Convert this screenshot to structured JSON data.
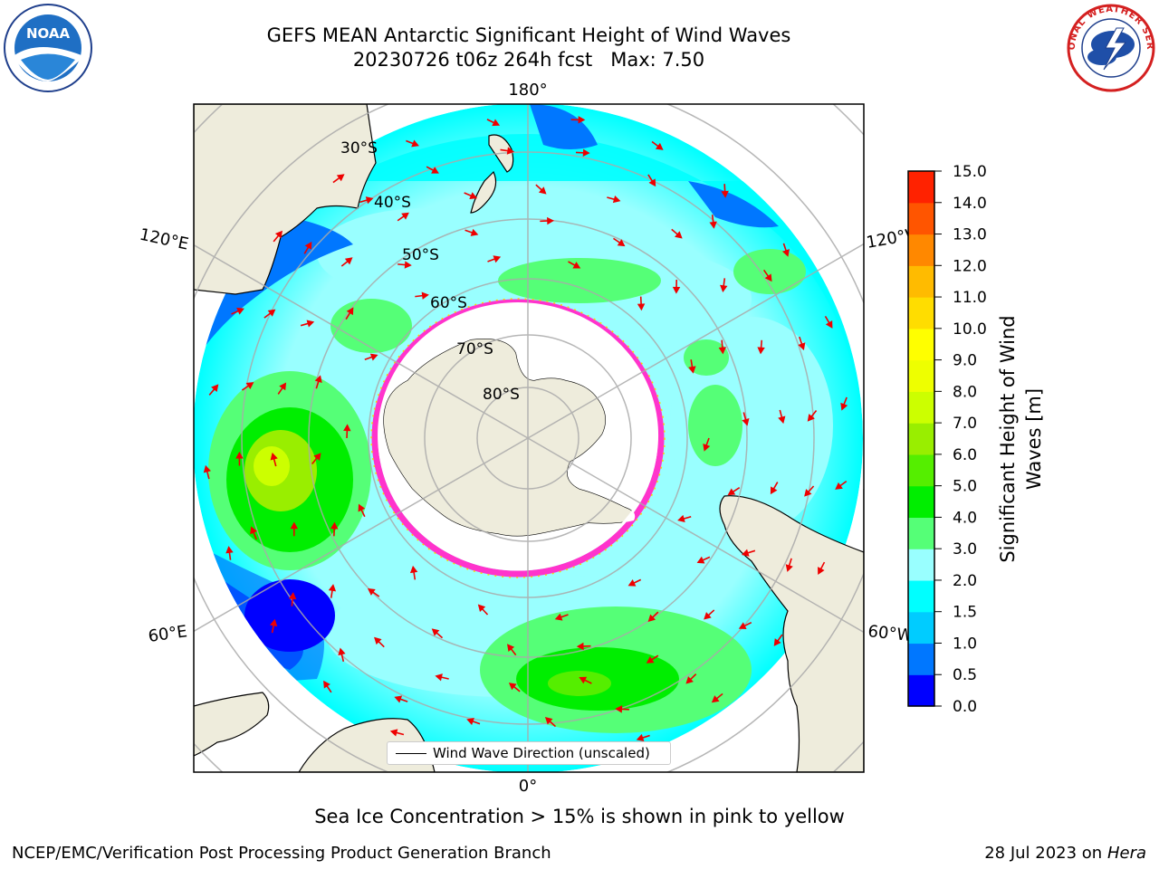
{
  "header": {
    "title_line1": "GEFS MEAN Antarctic Significant Height of Wind Waves",
    "title_line2": "20230726 t06z 264h fcst   Max: 7.50"
  },
  "logos": {
    "left": "NOAA",
    "right": "NATIONAL WEATHER SERVICE"
  },
  "map": {
    "projection": "south-polar-stereographic",
    "longitude_labels": {
      "top": "180°",
      "bottom": "0°",
      "left_upper": "120°E",
      "left_lower": "60°E",
      "right_upper": "120°W",
      "right_lower": "60°W"
    },
    "latitude_labels": [
      "30°S",
      "40°S",
      "50°S",
      "60°S",
      "70°S",
      "80°S"
    ],
    "legend_label": "Wind Wave Direction (unscaled)",
    "land_color": "#eeecdc",
    "ice_edge_colors": [
      "#ff33cc",
      "#ffffff",
      "#ffd700"
    ],
    "arrow_color": "#ee0000"
  },
  "colorbar": {
    "label": "Significant Height of Wind Waves [m]",
    "ticks": [
      "0.0",
      "0.5",
      "1.0",
      "1.5",
      "2.0",
      "3.0",
      "4.0",
      "5.0",
      "6.0",
      "7.0",
      "8.0",
      "9.0",
      "10.0",
      "11.0",
      "12.0",
      "13.0",
      "14.0",
      "15.0"
    ],
    "colors": [
      "#0000ff",
      "#0077ff",
      "#00ccff",
      "#00ffff",
      "#99ffff",
      "#55ff77",
      "#00ee00",
      "#55ee00",
      "#99ee00",
      "#ccff00",
      "#eeff00",
      "#ffff00",
      "#ffdd00",
      "#ffbb00",
      "#ff8800",
      "#ff5500",
      "#ff2200"
    ]
  },
  "notes": {
    "sea_ice": "Sea Ice Concentration > 15% is shown in pink to yellow"
  },
  "footer": {
    "left": "NCEP/EMC/Verification Post Processing Product Generation Branch",
    "right_prefix": "28 Jul 2023 on ",
    "right_machine": "Hera"
  }
}
